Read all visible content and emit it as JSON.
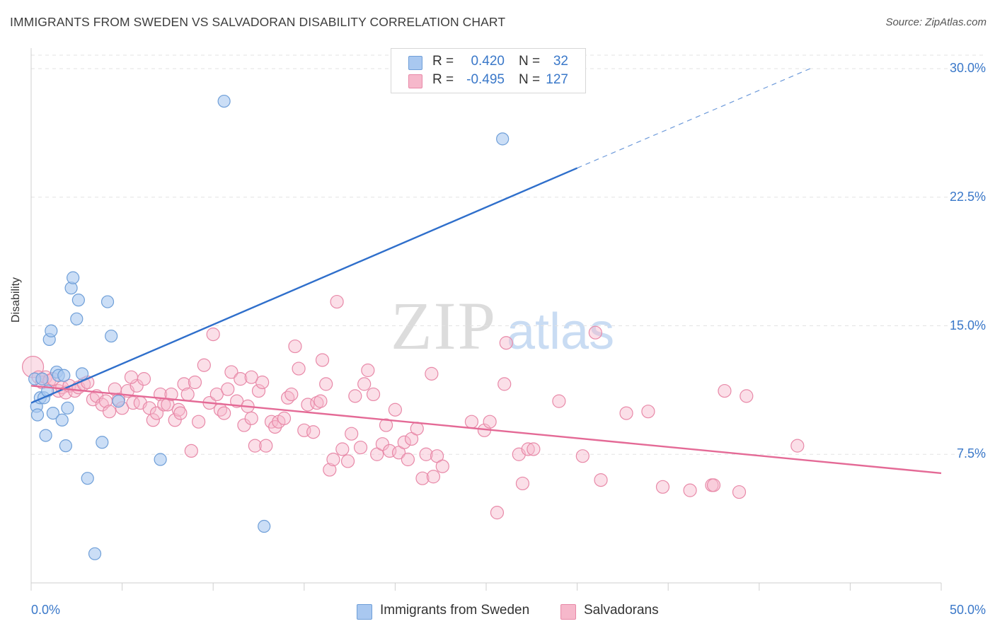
{
  "title": "IMMIGRANTS FROM SWEDEN VS SALVADORAN DISABILITY CORRELATION CHART",
  "source": "Source: ZipAtlas.com",
  "watermark": {
    "zip": "ZIP",
    "atlas": "atlas"
  },
  "legend": {
    "rows": [
      {
        "r_label": "R =",
        "r_value": "0.420",
        "n_label": "N =",
        "n_value": "32",
        "color": "#a9c8f0"
      },
      {
        "r_label": "R =",
        "r_value": "-0.495",
        "n_label": "N =",
        "n_value": "127",
        "color": "#f6b8cb"
      }
    ]
  },
  "bottom_legend": [
    "Immigrants from Sweden",
    "Salvadorans"
  ],
  "colors": {
    "sweden_fill": "#a9c8f0",
    "sweden_stroke": "#6f9fd8",
    "sweden_line": "#2f6fcb",
    "salvadoran_fill": "#f6b8cb",
    "salvadoran_stroke": "#e889a8",
    "salvadoran_line": "#e46a96",
    "tick_text": "#3a78c9",
    "grid": "#e3e3e3"
  },
  "chart_data": {
    "type": "scatter",
    "title": "IMMIGRANTS FROM SWEDEN VS SALVADORAN DISABILITY CORRELATION CHART",
    "xlabel": "",
    "ylabel": "Disability",
    "xlim": [
      0,
      50
    ],
    "ylim": [
      0,
      31
    ],
    "x_tick_labels": [
      "0.0%",
      "50.0%"
    ],
    "y_ticks": [
      7.5,
      15.0,
      22.5,
      30.0
    ],
    "y_tick_labels": [
      "7.5%",
      "15.0%",
      "22.5%",
      "30.0%"
    ],
    "grid": "horizontal dashed",
    "legend_position": "top-center",
    "series": [
      {
        "name": "Immigrants from Sweden",
        "R": 0.42,
        "N": 32,
        "trend": {
          "x0": 0,
          "y0": 10.5,
          "x1": 30,
          "y1": 24.2,
          "extended_x1": 42.8,
          "extended_y1": 30.0
        },
        "points": [
          [
            0.2,
            11.9
          ],
          [
            0.3,
            10.3
          ],
          [
            0.35,
            9.8
          ],
          [
            0.5,
            10.8
          ],
          [
            0.6,
            11.9
          ],
          [
            0.7,
            10.8
          ],
          [
            0.8,
            8.6
          ],
          [
            0.9,
            11.2
          ],
          [
            1.0,
            14.2
          ],
          [
            1.1,
            14.7
          ],
          [
            1.2,
            9.9
          ],
          [
            1.4,
            12.3
          ],
          [
            1.5,
            12.1
          ],
          [
            1.7,
            9.5
          ],
          [
            1.8,
            12.1
          ],
          [
            1.9,
            8.0
          ],
          [
            2.0,
            10.2
          ],
          [
            2.2,
            17.2
          ],
          [
            2.3,
            17.8
          ],
          [
            2.5,
            15.4
          ],
          [
            2.6,
            16.5
          ],
          [
            2.8,
            12.2
          ],
          [
            3.1,
            6.1
          ],
          [
            3.5,
            1.7
          ],
          [
            3.9,
            8.2
          ],
          [
            4.2,
            16.4
          ],
          [
            4.4,
            14.4
          ],
          [
            4.8,
            10.6
          ],
          [
            7.1,
            7.2
          ],
          [
            10.6,
            28.1
          ],
          [
            12.8,
            3.3
          ],
          [
            25.9,
            25.9
          ]
        ]
      },
      {
        "name": "Salvadorans",
        "R": -0.495,
        "N": 127,
        "trend": {
          "x0": 0,
          "y0": 11.5,
          "x1": 50,
          "y1": 6.4
        },
        "points": [
          [
            0.1,
            12.6
          ],
          [
            0.4,
            12.0
          ],
          [
            0.6,
            11.7
          ],
          [
            0.8,
            12.0
          ],
          [
            1.0,
            11.8
          ],
          [
            1.2,
            11.9
          ],
          [
            1.5,
            11.2
          ],
          [
            1.7,
            11.4
          ],
          [
            1.9,
            11.1
          ],
          [
            2.1,
            11.5
          ],
          [
            2.4,
            11.2
          ],
          [
            2.6,
            11.4
          ],
          [
            2.9,
            11.6
          ],
          [
            3.1,
            11.7
          ],
          [
            3.4,
            10.7
          ],
          [
            3.6,
            10.9
          ],
          [
            3.9,
            10.4
          ],
          [
            4.1,
            10.6
          ],
          [
            4.3,
            10.0
          ],
          [
            4.6,
            11.3
          ],
          [
            4.8,
            10.7
          ],
          [
            5.0,
            10.2
          ],
          [
            5.3,
            11.2
          ],
          [
            5.6,
            10.5
          ],
          [
            5.8,
            11.5
          ],
          [
            6.0,
            10.5
          ],
          [
            6.2,
            11.9
          ],
          [
            6.5,
            10.2
          ],
          [
            6.7,
            9.5
          ],
          [
            6.9,
            9.9
          ],
          [
            7.1,
            11.0
          ],
          [
            7.3,
            10.4
          ],
          [
            7.5,
            10.4
          ],
          [
            7.7,
            11.0
          ],
          [
            7.9,
            9.5
          ],
          [
            8.1,
            10.1
          ],
          [
            8.4,
            11.6
          ],
          [
            8.6,
            11.0
          ],
          [
            8.8,
            7.7
          ],
          [
            9.0,
            11.7
          ],
          [
            9.2,
            9.4
          ],
          [
            9.5,
            12.7
          ],
          [
            9.8,
            10.5
          ],
          [
            10.0,
            14.5
          ],
          [
            10.2,
            11.0
          ],
          [
            10.4,
            10.1
          ],
          [
            10.6,
            9.9
          ],
          [
            10.8,
            11.3
          ],
          [
            11.0,
            12.3
          ],
          [
            11.3,
            10.6
          ],
          [
            11.5,
            11.9
          ],
          [
            11.7,
            9.2
          ],
          [
            11.9,
            10.3
          ],
          [
            12.1,
            9.6
          ],
          [
            12.3,
            8.0
          ],
          [
            12.5,
            11.2
          ],
          [
            12.7,
            11.7
          ],
          [
            12.9,
            8.0
          ],
          [
            13.2,
            9.4
          ],
          [
            13.4,
            9.1
          ],
          [
            13.6,
            9.4
          ],
          [
            13.9,
            9.6
          ],
          [
            14.1,
            10.8
          ],
          [
            14.3,
            11.0
          ],
          [
            14.5,
            13.8
          ],
          [
            14.7,
            12.5
          ],
          [
            15.0,
            8.9
          ],
          [
            15.2,
            10.4
          ],
          [
            15.5,
            8.8
          ],
          [
            15.7,
            10.5
          ],
          [
            15.9,
            10.6
          ],
          [
            16.2,
            11.6
          ],
          [
            16.4,
            6.6
          ],
          [
            16.6,
            7.2
          ],
          [
            16.8,
            16.4
          ],
          [
            17.1,
            7.8
          ],
          [
            17.4,
            7.1
          ],
          [
            17.6,
            8.7
          ],
          [
            17.8,
            10.9
          ],
          [
            18.1,
            7.9
          ],
          [
            18.3,
            11.6
          ],
          [
            18.5,
            12.4
          ],
          [
            18.8,
            11.0
          ],
          [
            19.0,
            7.5
          ],
          [
            19.3,
            8.1
          ],
          [
            19.5,
            9.2
          ],
          [
            19.7,
            7.7
          ],
          [
            20.0,
            10.1
          ],
          [
            20.2,
            7.6
          ],
          [
            20.5,
            8.2
          ],
          [
            20.7,
            7.2
          ],
          [
            20.9,
            8.4
          ],
          [
            21.2,
            9.0
          ],
          [
            21.5,
            6.1
          ],
          [
            21.7,
            7.5
          ],
          [
            22.0,
            12.2
          ],
          [
            22.1,
            6.2
          ],
          [
            22.3,
            7.4
          ],
          [
            22.6,
            6.8
          ],
          [
            24.2,
            9.4
          ],
          [
            24.9,
            8.9
          ],
          [
            25.2,
            9.4
          ],
          [
            25.6,
            4.1
          ],
          [
            26.0,
            11.6
          ],
          [
            26.1,
            14.0
          ],
          [
            26.8,
            7.5
          ],
          [
            27.0,
            5.8
          ],
          [
            27.3,
            7.8
          ],
          [
            27.6,
            7.8
          ],
          [
            29.0,
            10.6
          ],
          [
            30.3,
            7.4
          ],
          [
            31.0,
            14.6
          ],
          [
            31.3,
            6.0
          ],
          [
            32.7,
            9.9
          ],
          [
            33.9,
            10.0
          ],
          [
            34.7,
            5.6
          ],
          [
            36.2,
            5.4
          ],
          [
            37.4,
            5.7
          ],
          [
            38.1,
            11.2
          ],
          [
            38.9,
            5.3
          ],
          [
            39.3,
            10.9
          ],
          [
            42.1,
            8.0
          ],
          [
            37.5,
            5.7
          ],
          [
            16.0,
            13.0
          ],
          [
            8.2,
            9.9
          ],
          [
            12.1,
            12.0
          ],
          [
            5.5,
            12.0
          ]
        ]
      }
    ]
  }
}
